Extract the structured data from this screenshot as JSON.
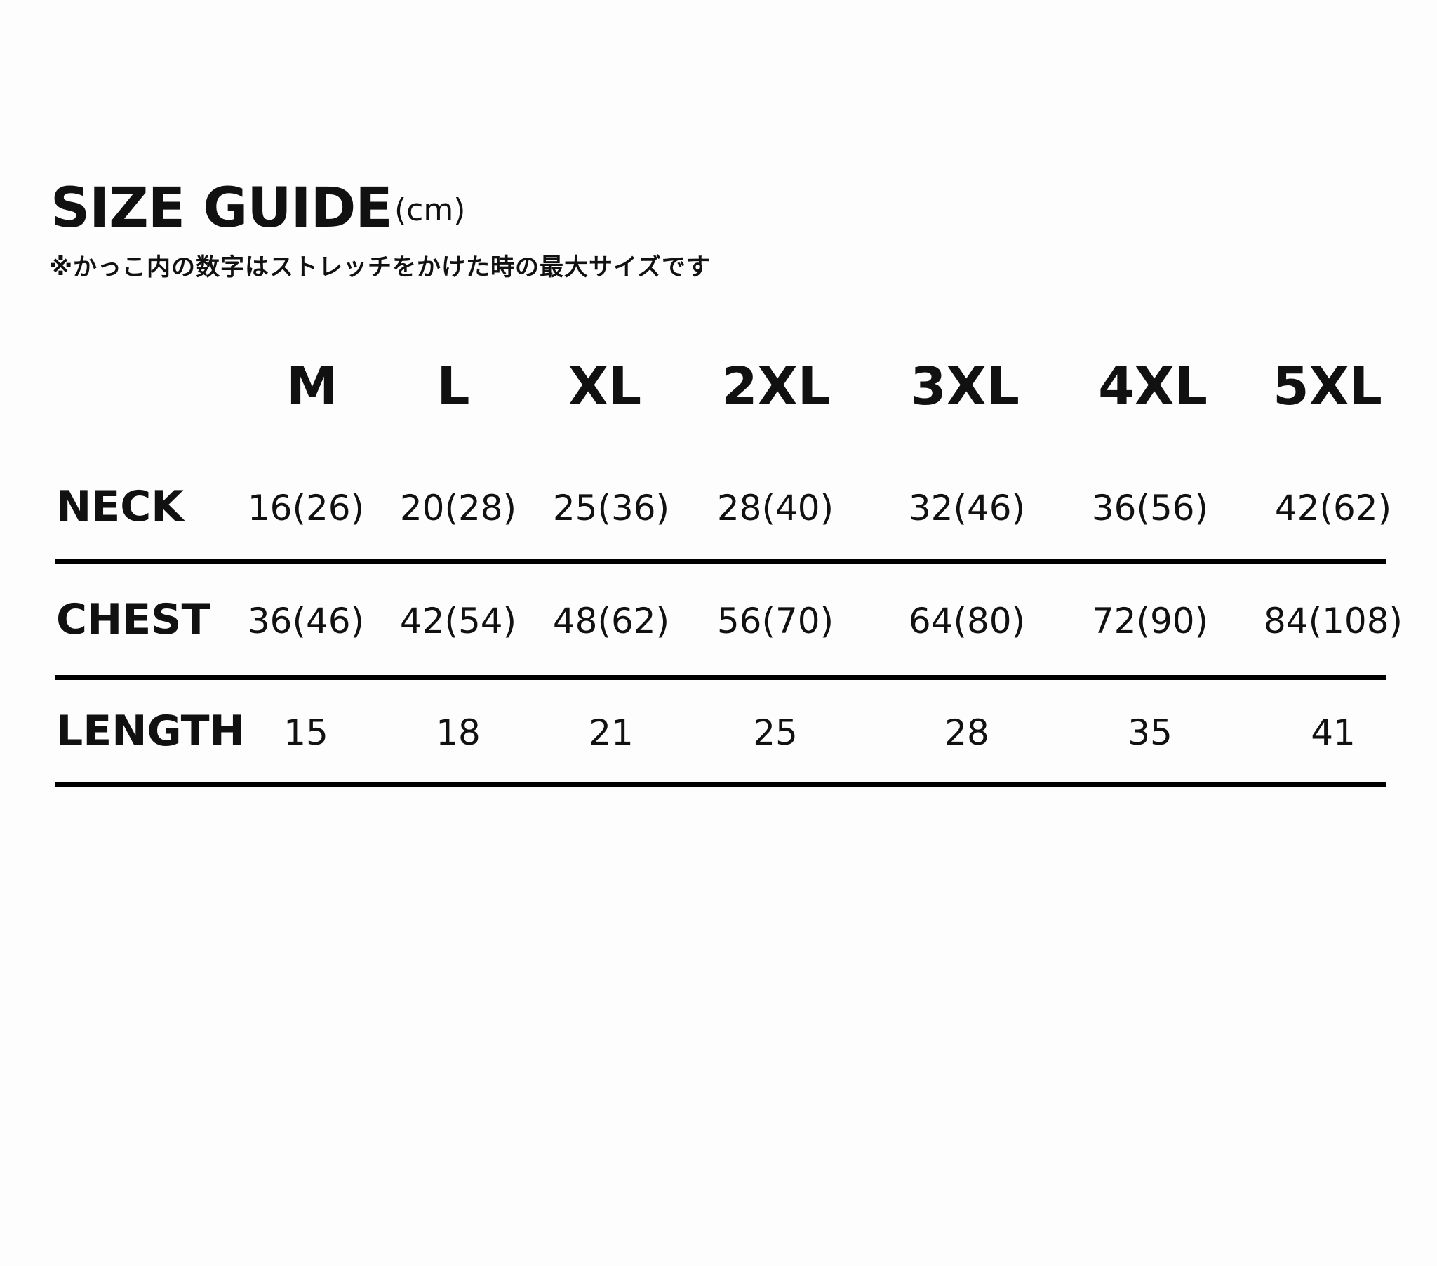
{
  "title": "SIZE GUIDE",
  "unit": "(cm)",
  "note": "※かっこ内の数字はストレッチをかけた時の最大サイズです",
  "sizes": [
    "M",
    "L",
    "XL",
    "2XL",
    "3XL",
    "4XL",
    "5XL"
  ],
  "rows": [
    {
      "label": "NECK",
      "values": [
        "16(26)",
        "20(28)",
        "25(36)",
        "28(40)",
        "32(46)",
        "36(56)",
        "42(62)"
      ]
    },
    {
      "label": "CHEST",
      "values": [
        "36(46)",
        "42(54)",
        "48(62)",
        "56(70)",
        "64(80)",
        "72(90)",
        "84(108)"
      ]
    },
    {
      "label": "LENGTH",
      "values": [
        "15",
        "18",
        "21",
        "25",
        "28",
        "35",
        "41"
      ]
    }
  ],
  "colors": {
    "text": "#111111",
    "rule": "#000000",
    "background": "#fdfdfd"
  }
}
